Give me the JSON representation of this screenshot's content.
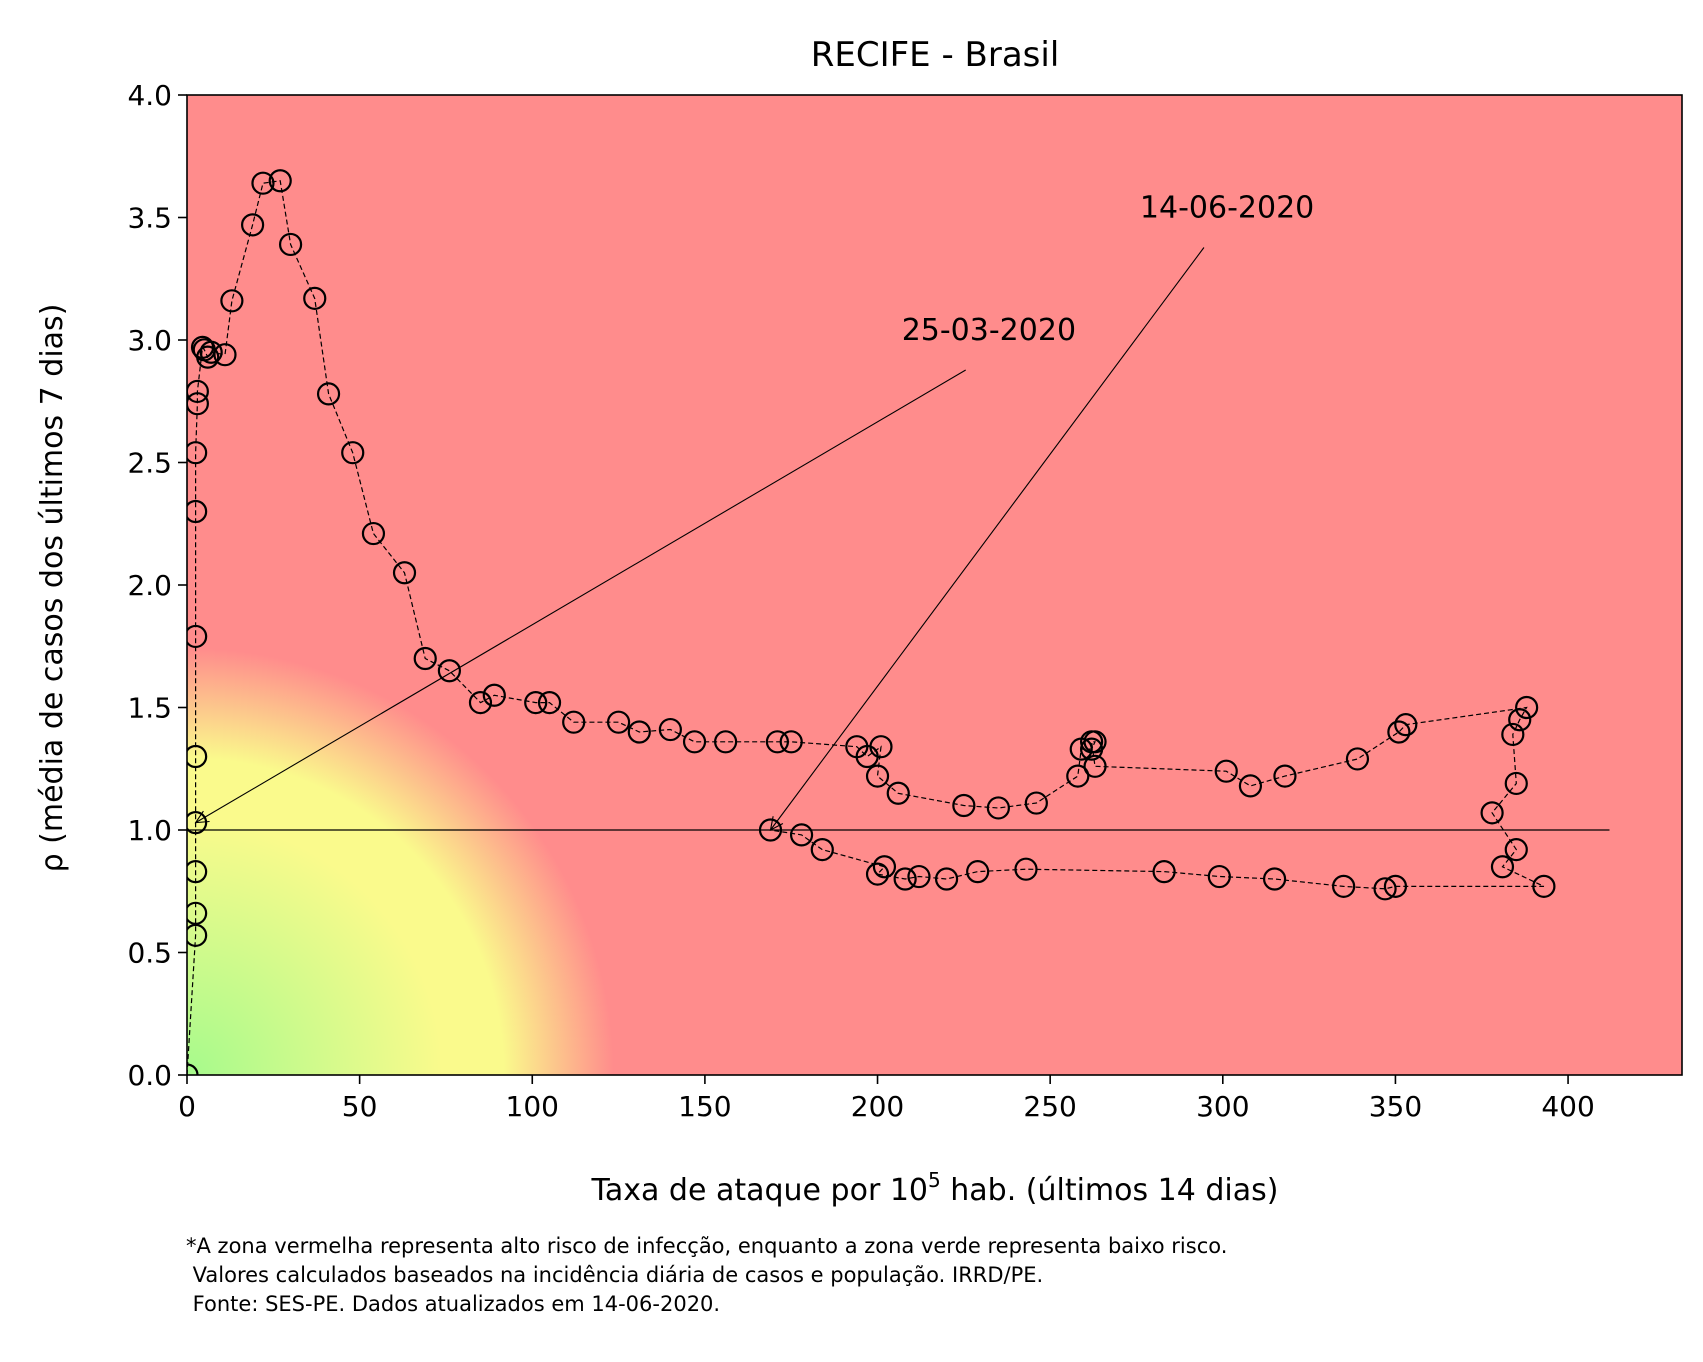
{
  "chart_data": {
    "type": "scatter",
    "title": "RECIFE - Brasil",
    "xlabel_prefix": "Taxa de ataque por 10",
    "xlabel_sup": "5",
    "xlabel_suffix": " hab. (últimos 14 dias)",
    "ylabel": "ρ (média de casos dos últimos 7 dias)",
    "xlim": [
      0,
      433
    ],
    "ylim": [
      0,
      4.0
    ],
    "x_ticks": [
      "0",
      "50",
      "100",
      "150",
      "200",
      "250",
      "300",
      "350",
      "400"
    ],
    "y_ticks": [
      "0.0",
      "0.5",
      "1.0",
      "1.5",
      "2.0",
      "2.5",
      "3.0",
      "3.5",
      "4.0"
    ],
    "grid": false,
    "background": {
      "risk_high": "#ff8c8c",
      "risk_medium": "#fafa8c",
      "risk_low": "#a6fa8c"
    },
    "reference_line": {
      "y": 1.0,
      "x_range": [
        0,
        412
      ]
    },
    "annotations": [
      {
        "text": "25-03-2020",
        "x": 2.5,
        "y": 1.03,
        "text_x": 207,
        "text_y": 3.0
      },
      {
        "text": "14-06-2020",
        "x": 169,
        "y": 1.0,
        "text_x": 276,
        "text_y": 3.5
      }
    ],
    "x": [
      0,
      2.5,
      2.5,
      2.5,
      2.5,
      2.5,
      2.5,
      2.5,
      2.5,
      3,
      3,
      4.5,
      5,
      6,
      7,
      11,
      13,
      19,
      22,
      27,
      30,
      37,
      41,
      48,
      54,
      63,
      69,
      76,
      85,
      89,
      101,
      105,
      112,
      125,
      131,
      140,
      147,
      156,
      171,
      175,
      194,
      197,
      201,
      200,
      206,
      225,
      235,
      246,
      258,
      259,
      262,
      263,
      262,
      263,
      301,
      308,
      318,
      339,
      351,
      353,
      388,
      386,
      384,
      385,
      378,
      385,
      381,
      393,
      350,
      347,
      335,
      315,
      299,
      283,
      243,
      229,
      220,
      212,
      208,
      200,
      202,
      184,
      178,
      169
    ],
    "y": [
      0,
      0.57,
      0.66,
      0.83,
      1.03,
      1.3,
      1.79,
      2.3,
      2.54,
      2.74,
      2.79,
      2.97,
      2.96,
      2.93,
      2.95,
      2.94,
      3.16,
      3.47,
      3.64,
      3.65,
      3.39,
      3.17,
      2.78,
      2.54,
      2.21,
      2.05,
      1.7,
      1.65,
      1.52,
      1.55,
      1.52,
      1.52,
      1.44,
      1.44,
      1.4,
      1.41,
      1.36,
      1.36,
      1.36,
      1.36,
      1.34,
      1.3,
      1.34,
      1.22,
      1.15,
      1.1,
      1.09,
      1.11,
      1.22,
      1.33,
      1.33,
      1.36,
      1.36,
      1.26,
      1.24,
      1.18,
      1.22,
      1.29,
      1.4,
      1.43,
      1.5,
      1.45,
      1.39,
      1.19,
      1.07,
      0.92,
      0.85,
      0.77,
      0.77,
      0.76,
      0.77,
      0.8,
      0.81,
      0.83,
      0.84,
      0.83,
      0.8,
      0.81,
      0.8,
      0.82,
      0.85,
      0.92,
      0.98,
      1.0
    ]
  },
  "footnote": {
    "line1": "*A zona vermelha representa alto risco de infecção, enquanto a zona verde representa baixo risco.",
    "line2": " Valores calculados baseados na incidência diária de casos e população. IRRD/PE.",
    "line3": " Fonte: SES-PE. Dados atualizados em 14-06-2020."
  }
}
